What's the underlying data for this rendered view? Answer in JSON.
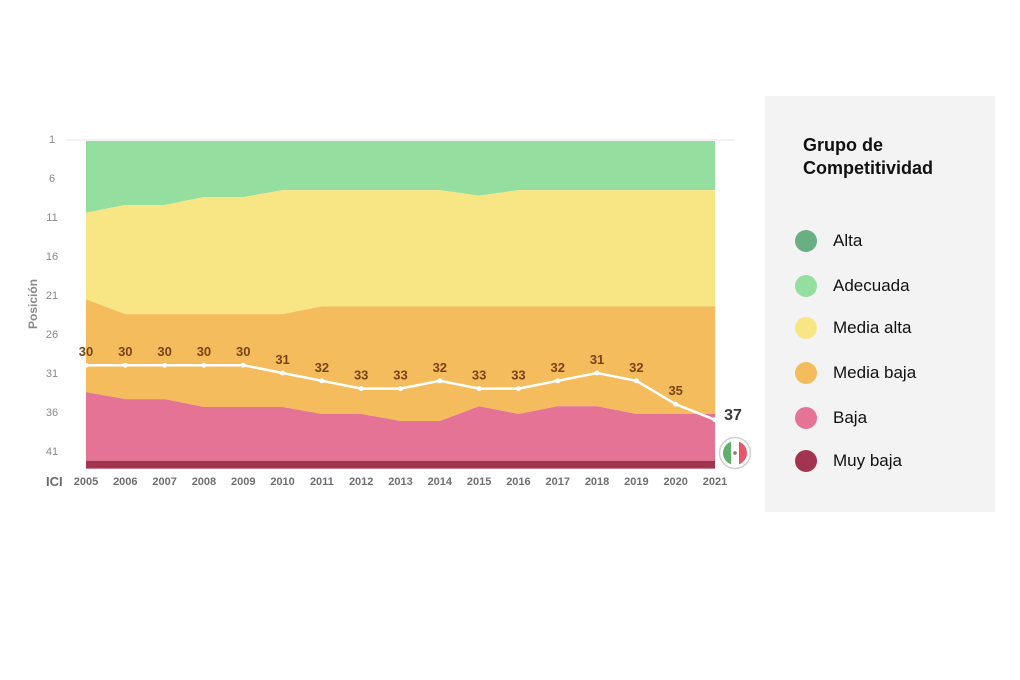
{
  "chart_data": {
    "type": "area",
    "title": "",
    "xlabel": "ICI",
    "ylabel": "Posición",
    "y_reversed": true,
    "ylim": [
      1,
      43
    ],
    "yticks": [
      1,
      6,
      11,
      16,
      21,
      26,
      31,
      36,
      41
    ],
    "x": [
      2005,
      2006,
      2007,
      2008,
      2009,
      2010,
      2011,
      2012,
      2013,
      2014,
      2015,
      2016,
      2017,
      2018,
      2019,
      2020,
      2021
    ],
    "bands": [
      {
        "name": "Adecuada",
        "color": "#94dea0",
        "lower_boundary": [
          10.2,
          9.2,
          9.2,
          8.2,
          8.2,
          7.3,
          7.3,
          7.3,
          7.3,
          7.3,
          8.0,
          7.3,
          7.3,
          7.3,
          7.3,
          7.3,
          7.3
        ]
      },
      {
        "name": "Media alta",
        "color": "#f8e684",
        "lower_boundary": [
          21.3,
          23.2,
          23.2,
          23.2,
          23.2,
          23.2,
          22.2,
          22.2,
          22.2,
          22.2,
          22.2,
          22.2,
          22.2,
          22.2,
          22.2,
          22.2,
          22.2
        ]
      },
      {
        "name": "Media baja",
        "color": "#f4bc5c",
        "lower_boundary": [
          33.2,
          34.1,
          34.1,
          35.1,
          35.1,
          35.1,
          36.0,
          36.0,
          36.9,
          36.9,
          35.0,
          36.0,
          35.0,
          35.0,
          36.0,
          36.0,
          36.0
        ]
      },
      {
        "name": "Baja",
        "color": "#e57395",
        "lower_boundary": [
          42,
          42,
          42,
          42,
          42,
          42,
          42,
          42,
          42,
          42,
          42,
          42,
          42,
          42,
          42,
          42,
          42
        ]
      },
      {
        "name": "Muy baja",
        "color": "#a33450",
        "lower_boundary": [
          43,
          43,
          43,
          43,
          43,
          43,
          43,
          43,
          43,
          43,
          43,
          43,
          43,
          43,
          43,
          43,
          43
        ]
      }
    ],
    "series": [
      {
        "name": "México",
        "color": "#ffffff",
        "values": [
          30,
          30,
          30,
          30,
          30,
          31,
          32,
          33,
          33,
          32,
          33,
          33,
          32,
          31,
          32,
          35,
          37
        ]
      }
    ],
    "final_marker": {
      "country": "México",
      "icon": "mexico-flag-icon",
      "value": 37
    },
    "legend": {
      "title": "Grupo de Competitividad",
      "position": "right",
      "items": [
        {
          "label": "Alta",
          "color": "#6aae84"
        },
        {
          "label": "Adecuada",
          "color": "#94dea0"
        },
        {
          "label": "Media alta",
          "color": "#f8e684"
        },
        {
          "label": "Media baja",
          "color": "#f4bc5c"
        },
        {
          "label": "Baja",
          "color": "#e57395"
        },
        {
          "label": "Muy baja",
          "color": "#a33450"
        }
      ]
    }
  }
}
